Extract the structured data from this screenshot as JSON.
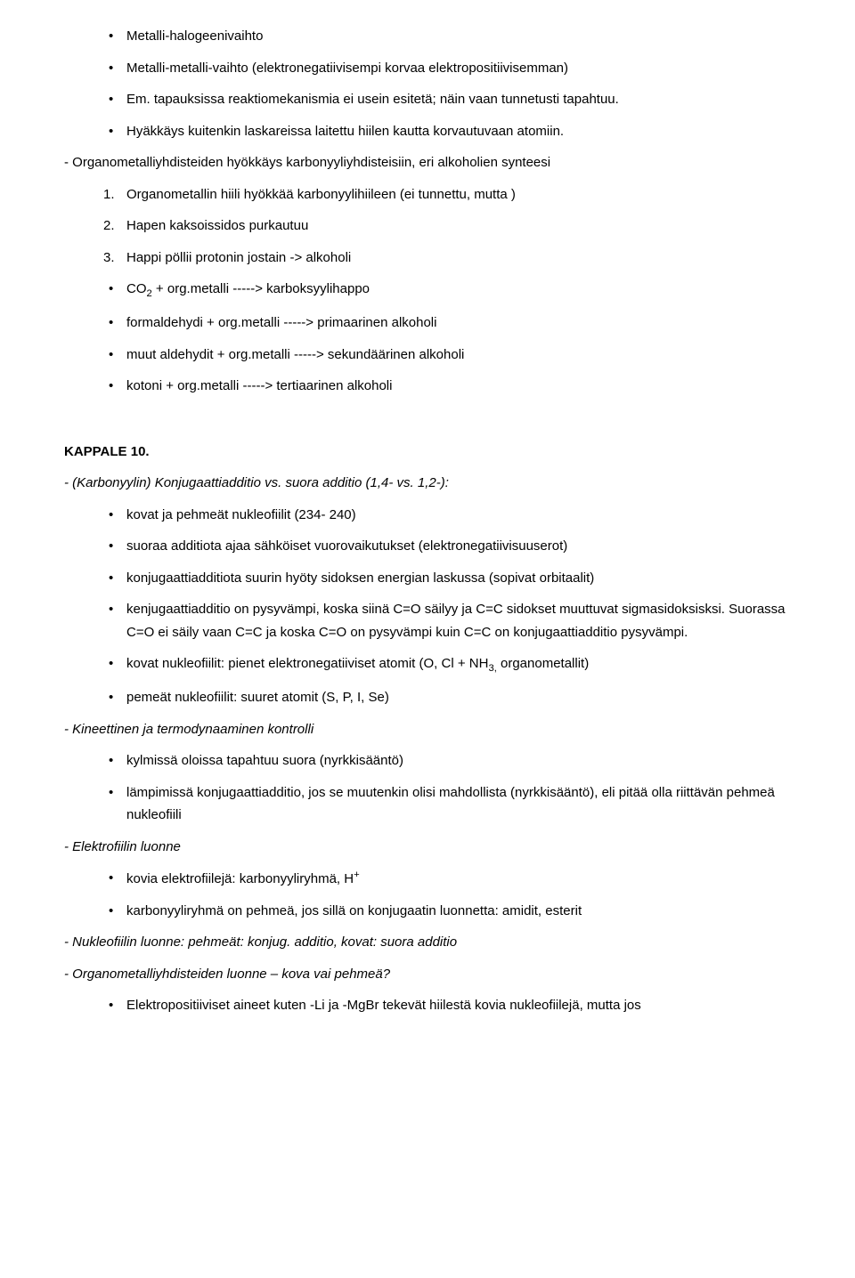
{
  "top_bullets": [
    "Metalli-halogeenivaihto",
    "Metalli-metalli-vaihto (elektronegatiivisempi korvaa elektropositiivisemman)",
    "Em. tapauksissa reaktiomekanismia ei usein esitetä; näin vaan tunnetusti tapahtuu.",
    "Hyäkkäys kuitenkin laskareissa laitettu hiilen kautta korvautuvaan atomiin."
  ],
  "organo_heading": "- Organometalliyhdisteiden hyökkäys karbonyyliyhdisteisiin, eri alkoholien synteesi",
  "organo_numbers": [
    "Organometallin hiili hyökkää karbonyylihiileen (ei tunnettu, mutta )",
    "Hapen kaksoissidos purkautuu",
    "Happi pöllii protonin jostain -> alkoholi"
  ],
  "organo_bullets": [
    {
      "pre": "CO",
      "sub": "2",
      "post": " + org.metalli -----> karboksyylihappo"
    },
    {
      "text": "formaldehydi + org.metalli -----> primaarinen alkoholi"
    },
    {
      "text": "muut aldehydit + org.metalli -----> sekundäärinen alkoholi"
    },
    {
      "text": "kotoni + org.metalli -----> tertiaarinen alkoholi"
    }
  ],
  "kappale10_heading": "KAPPALE 10.",
  "konj_heading": "- (Karbonyylin) Konjugaattiadditio vs. suora additio (1,4- vs. 1,2-):",
  "konj_bullets": [
    {
      "text": "kovat ja pehmeät nukleofiilit (234- 240)"
    },
    {
      "text": "suoraa additiota ajaa sähköiset vuorovaikutukset (elektronegatiivisuuserot)"
    },
    {
      "text": "konjugaattiadditiota suurin hyöty sidoksen energian laskussa (sopivat orbitaalit)"
    },
    {
      "text": "kenjugaattiadditio on pysyvämpi, koska siinä C=O säilyy ja C=C sidokset muuttuvat sigmasidoksisksi. Suorassa C=O ei säily vaan C=C ja koska C=O on pysyvämpi kuin C=C on konjugaattiadditio pysyvämpi."
    },
    {
      "pre": "kovat nukleofiilit: pienet elektronegatiiviset atomit (O, Cl + NH",
      "sub": "3,",
      "post": " organometallit)"
    },
    {
      "text": "pemeät nukleofiilit: suuret atomit (S, P, I, Se)"
    }
  ],
  "kin_heading": "- Kineettinen ja termodynaaminen kontrolli",
  "kin_bullets": [
    "kylmissä oloissa tapahtuu suora (nyrkkisääntö)",
    "lämpimissä konjugaattiadditio, jos se muutenkin olisi mahdollista (nyrkkisääntö), eli pitää olla riittävän pehmeä nukleofiili"
  ],
  "elek_heading": "- Elektrofiilin luonne",
  "elek_bullets": [
    {
      "pre": "kovia elektrofiilejä: karbonyyliryhmä, H",
      "sup": "+"
    },
    {
      "text": "karbonyyliryhmä on pehmeä, jos sillä on konjugaatin luonnetta: amidit, esterit"
    }
  ],
  "nukleo_heading": "- Nukleofiilin luonne: pehmeät: konjug. additio, kovat: suora additio",
  "organo2_heading": "- Organometalliyhdisteiden luonne – kova vai pehmeä?",
  "organo2_bullets": [
    "Elektropositiiviset aineet kuten -Li ja -MgBr tekevät hiilestä kovia nukleofiilejä, mutta jos"
  ]
}
